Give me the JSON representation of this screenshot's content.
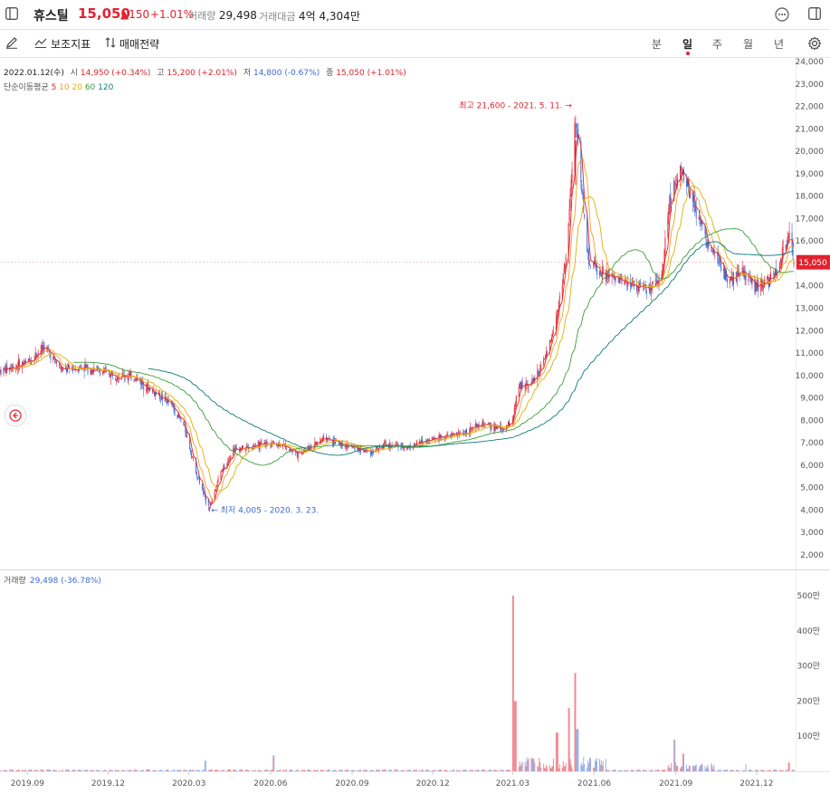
{
  "header": {
    "name": "휴스틸",
    "price": "15,050",
    "change": "▲150",
    "change_pct": "+1.01%",
    "volume_label": "거래량",
    "volume_value": "29,498",
    "amount_label": "거래대금",
    "amount_value": "4억 4,304만",
    "colors": {
      "up": "#e0232f",
      "down": "#3b6bd8"
    }
  },
  "toolbar": {
    "indicator_label": "보조지표",
    "strategy_label": "매매전략",
    "periods": [
      "분",
      "일",
      "주",
      "월",
      "년"
    ],
    "active_period": "일"
  },
  "info": {
    "date": "2022.01.12(수)",
    "open_label": "시",
    "open": "14,950 (+0.34%)",
    "high_label": "고",
    "high": "15,200 (+2.01%)",
    "low_label": "저",
    "low": "14,800 (-0.67%)",
    "close_label": "종",
    "close": "15,050 (+1.01%)",
    "ma_label": "단순이동평균",
    "ma_periods": [
      {
        "period": "5",
        "color": "#e0232f"
      },
      {
        "period": "10",
        "color": "#f0a030"
      },
      {
        "period": "20",
        "color": "#e0b000"
      },
      {
        "period": "60",
        "color": "#3a9e3a"
      },
      {
        "period": "120",
        "color": "#0e7a7a"
      }
    ]
  },
  "volume_info": {
    "label": "거래량",
    "value": "29,498 (-36.78%)"
  },
  "chart_data": {
    "type": "line",
    "title": "",
    "price_axis": {
      "ticks": [
        "24,000",
        "23,000",
        "22,000",
        "21,000",
        "20,000",
        "19,000",
        "18,000",
        "17,000",
        "16,000",
        "15,000",
        "14,000",
        "13,000",
        "12,000",
        "11,000",
        "10,000",
        "9,000",
        "8,000",
        "7,000",
        "6,000",
        "5,000",
        "4,000",
        "3,000",
        "2,000"
      ],
      "range": [
        1500,
        24000
      ]
    },
    "current_price_label": "15,050",
    "x_ticks": [
      "2019.09",
      "2019.12",
      "2020.03",
      "2020.06",
      "2020.09",
      "2020.12",
      "2021.03",
      "2021.06",
      "2021.09",
      "2021.12"
    ],
    "annotations": {
      "high": "최고 21,600 - 2021. 5. 11.",
      "low": "최저 4,005 - 2020. 3. 23."
    },
    "close_series": [
      [
        "2019-08-01",
        10200
      ],
      [
        "2019-09-01",
        10600
      ],
      [
        "2019-09-20",
        11300
      ],
      [
        "2019-10-10",
        10200
      ],
      [
        "2019-11-01",
        10400
      ],
      [
        "2019-12-01",
        10100
      ],
      [
        "2020-01-01",
        9900
      ],
      [
        "2020-01-20",
        9300
      ],
      [
        "2020-02-10",
        8700
      ],
      [
        "2020-02-25",
        7700
      ],
      [
        "2020-03-10",
        5600
      ],
      [
        "2020-03-23",
        4005
      ],
      [
        "2020-04-05",
        5600
      ],
      [
        "2020-04-20",
        6700
      ],
      [
        "2020-05-10",
        6800
      ],
      [
        "2020-06-01",
        7000
      ],
      [
        "2020-06-15",
        6900
      ],
      [
        "2020-07-01",
        6500
      ],
      [
        "2020-08-01",
        7200
      ],
      [
        "2020-09-01",
        6800
      ],
      [
        "2020-09-20",
        6600
      ],
      [
        "2020-10-10",
        6900
      ],
      [
        "2020-11-01",
        6800
      ],
      [
        "2020-12-01",
        7200
      ],
      [
        "2021-01-01",
        7400
      ],
      [
        "2021-01-25",
        7800
      ],
      [
        "2021-02-20",
        7600
      ],
      [
        "2021-03-01",
        8100
      ],
      [
        "2021-03-08",
        9500
      ],
      [
        "2021-03-25",
        9800
      ],
      [
        "2021-04-08",
        10800
      ],
      [
        "2021-04-20",
        12800
      ],
      [
        "2021-05-01",
        15500
      ],
      [
        "2021-05-11",
        21600
      ],
      [
        "2021-05-25",
        15200
      ],
      [
        "2021-06-10",
        14500
      ],
      [
        "2021-06-25",
        14300
      ],
      [
        "2021-07-15",
        14100
      ],
      [
        "2021-08-01",
        13800
      ],
      [
        "2021-08-15",
        14200
      ],
      [
        "2021-08-25",
        17800
      ],
      [
        "2021-09-05",
        19200
      ],
      [
        "2021-09-20",
        18000
      ],
      [
        "2021-10-05",
        16000
      ],
      [
        "2021-10-20",
        15000
      ],
      [
        "2021-11-01",
        14200
      ],
      [
        "2021-11-15",
        14600
      ],
      [
        "2021-12-01",
        14000
      ],
      [
        "2021-12-20",
        14300
      ],
      [
        "2022-01-07",
        16200
      ],
      [
        "2022-01-12",
        15050
      ]
    ],
    "volume_axis": {
      "ticks": [
        "500만",
        "400만",
        "300만",
        "200만",
        "100만"
      ],
      "range": [
        0,
        5500000
      ]
    },
    "volume_spikes": [
      [
        "2020-03-20",
        300000
      ],
      [
        "2020-06-05",
        450000
      ],
      [
        "2021-03-02",
        5000000
      ],
      [
        "2021-03-04",
        2000000
      ],
      [
        "2021-04-20",
        1100000
      ],
      [
        "2021-05-03",
        1800000
      ],
      [
        "2021-05-11",
        2800000
      ],
      [
        "2021-05-13",
        1200000
      ],
      [
        "2021-08-30",
        900000
      ],
      [
        "2021-09-10",
        500000
      ],
      [
        "2021-11-20",
        200000
      ],
      [
        "2022-01-07",
        250000
      ]
    ]
  }
}
